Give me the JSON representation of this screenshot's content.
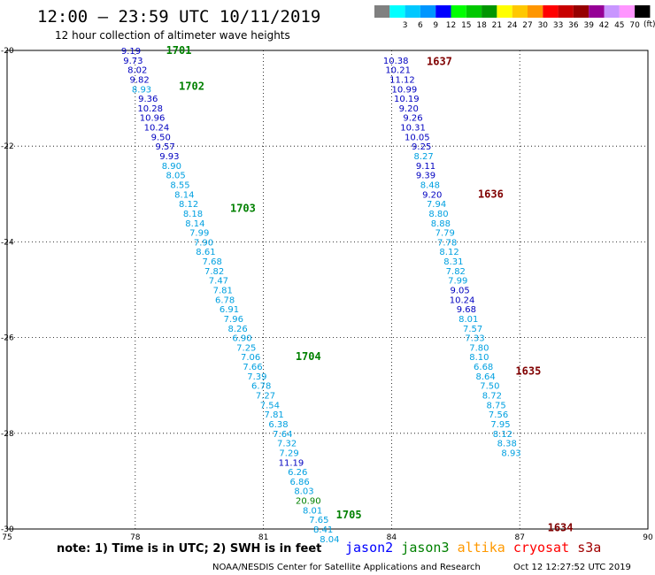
{
  "chart_data": {
    "type": "scatter",
    "title": "12:00 – 23:59 UTC 10/11/2019",
    "subtitle": "12 hour collection of altimeter wave heights",
    "xlim": [
      75,
      90
    ],
    "ylim": [
      -30,
      -20
    ],
    "x_ticks": [
      "75",
      "78",
      "81",
      "84",
      "87",
      "90"
    ],
    "y_ticks": [
      "-20",
      "-22",
      "-24",
      "-26",
      "-28",
      "-30"
    ],
    "grid": true,
    "units": "(ft)",
    "scale": [
      {
        "label": "",
        "color": "#808080"
      },
      {
        "label": "3",
        "color": "#00ffff"
      },
      {
        "label": "6",
        "color": "#00c8ff"
      },
      {
        "label": "9",
        "color": "#0096ff"
      },
      {
        "label": "12",
        "color": "#0000ff"
      },
      {
        "label": "15",
        "color": "#00ff00"
      },
      {
        "label": "18",
        "color": "#00c800"
      },
      {
        "label": "21",
        "color": "#009600"
      },
      {
        "label": "24",
        "color": "#ffff00"
      },
      {
        "label": "27",
        "color": "#ffc800"
      },
      {
        "label": "30",
        "color": "#ff9600"
      },
      {
        "label": "33",
        "color": "#ff0000"
      },
      {
        "label": "36",
        "color": "#c80000"
      },
      {
        "label": "39",
        "color": "#960000"
      },
      {
        "label": "42",
        "color": "#960096"
      },
      {
        "label": "45",
        "color": "#c896ff"
      },
      {
        "label": "70",
        "color": "#ff96ff"
      },
      {
        "label": "",
        "color": "#000000"
      }
    ],
    "pass_labels": [
      {
        "text": "1701",
        "lon": 79.02,
        "lat": -20.0,
        "color": "#008000"
      },
      {
        "text": "1702",
        "lon": 79.32,
        "lat": -20.75,
        "color": "#008000"
      },
      {
        "text": "1703",
        "lon": 80.52,
        "lat": -23.3,
        "color": "#008000"
      },
      {
        "text": "1704",
        "lon": 82.05,
        "lat": -26.4,
        "color": "#008000"
      },
      {
        "text": "1705",
        "lon": 83.0,
        "lat": -29.7,
        "color": "#008000"
      },
      {
        "text": "1637",
        "lon": 85.12,
        "lat": -20.23,
        "color": "#800000"
      },
      {
        "text": "1636",
        "lon": 86.32,
        "lat": -23.0,
        "color": "#800000"
      },
      {
        "text": "1635",
        "lon": 87.2,
        "lat": -26.7,
        "color": "#800000"
      },
      {
        "text": "1634",
        "lon": 87.95,
        "lat": -29.97,
        "color": "#800000"
      }
    ],
    "series": [
      {
        "name": "jason3",
        "points": [
          {
            "lon": 77.9,
            "lat": -20.0,
            "v": "9.19",
            "color": "#0000c0"
          },
          {
            "lon": 77.95,
            "lat": -20.2,
            "v": "9.73",
            "color": "#0000c0"
          },
          {
            "lon": 78.05,
            "lat": -20.4,
            "v": "8.02",
            "color": "#0000c0"
          },
          {
            "lon": 78.1,
            "lat": -20.6,
            "v": "9.82",
            "color": "#0000c0"
          },
          {
            "lon": 78.15,
            "lat": -20.8,
            "v": "8.93",
            "color": "#00a0e0"
          },
          {
            "lon": 78.3,
            "lat": -21.0,
            "v": "9.36",
            "color": "#0000c0"
          },
          {
            "lon": 78.35,
            "lat": -21.2,
            "v": "10.28",
            "color": "#0000c0"
          },
          {
            "lon": 78.4,
            "lat": -21.4,
            "v": "10.96",
            "color": "#0000c0"
          },
          {
            "lon": 78.5,
            "lat": -21.6,
            "v": "10.24",
            "color": "#0000c0"
          },
          {
            "lon": 78.6,
            "lat": -21.8,
            "v": "9.50",
            "color": "#0000c0"
          },
          {
            "lon": 78.7,
            "lat": -22.0,
            "v": "9.57",
            "color": "#0000c0"
          },
          {
            "lon": 78.8,
            "lat": -22.2,
            "v": "9.93",
            "color": "#0000c0"
          },
          {
            "lon": 78.85,
            "lat": -22.4,
            "v": "8.90",
            "color": "#00a0e0"
          },
          {
            "lon": 78.95,
            "lat": -22.6,
            "v": "8.05",
            "color": "#00a0e0"
          },
          {
            "lon": 79.05,
            "lat": -22.8,
            "v": "8.55",
            "color": "#00a0e0"
          },
          {
            "lon": 79.15,
            "lat": -23.0,
            "v": "8.14",
            "color": "#00a0e0"
          },
          {
            "lon": 79.25,
            "lat": -23.2,
            "v": "8.12",
            "color": "#00a0e0"
          },
          {
            "lon": 79.35,
            "lat": -23.4,
            "v": "8.18",
            "color": "#00a0e0"
          },
          {
            "lon": 79.4,
            "lat": -23.6,
            "v": "8.14",
            "color": "#00a0e0"
          },
          {
            "lon": 79.5,
            "lat": -23.8,
            "v": "7.99",
            "color": "#00a0e0"
          },
          {
            "lon": 79.6,
            "lat": -24.0,
            "v": "7.90",
            "color": "#00a0e0"
          },
          {
            "lon": 79.65,
            "lat": -24.2,
            "v": "8.61",
            "color": "#00a0e0"
          },
          {
            "lon": 79.8,
            "lat": -24.4,
            "v": "7.68",
            "color": "#00a0e0"
          },
          {
            "lon": 79.85,
            "lat": -24.6,
            "v": "7.82",
            "color": "#00a0e0"
          },
          {
            "lon": 79.95,
            "lat": -24.8,
            "v": "7.47",
            "color": "#00a0e0"
          },
          {
            "lon": 80.05,
            "lat": -25.0,
            "v": "7.81",
            "color": "#00a0e0"
          },
          {
            "lon": 80.1,
            "lat": -25.2,
            "v": "6.78",
            "color": "#00a0e0"
          },
          {
            "lon": 80.2,
            "lat": -25.4,
            "v": "6.91",
            "color": "#00a0e0"
          },
          {
            "lon": 80.3,
            "lat": -25.6,
            "v": "7.96",
            "color": "#00a0e0"
          },
          {
            "lon": 80.4,
            "lat": -25.8,
            "v": "8.26",
            "color": "#00a0e0"
          },
          {
            "lon": 80.5,
            "lat": -26.0,
            "v": "6.90",
            "color": "#00a0e0"
          },
          {
            "lon": 80.6,
            "lat": -26.2,
            "v": "7.25",
            "color": "#00a0e0"
          },
          {
            "lon": 80.7,
            "lat": -26.4,
            "v": "7.06",
            "color": "#00a0e0"
          },
          {
            "lon": 80.75,
            "lat": -26.6,
            "v": "7.66",
            "color": "#00a0e0"
          },
          {
            "lon": 80.85,
            "lat": -26.8,
            "v": "7.39",
            "color": "#00a0e0"
          },
          {
            "lon": 80.95,
            "lat": -27.0,
            "v": "6.78",
            "color": "#00a0e0"
          },
          {
            "lon": 81.05,
            "lat": -27.2,
            "v": "7.27",
            "color": "#00a0e0"
          },
          {
            "lon": 81.15,
            "lat": -27.4,
            "v": "7.54",
            "color": "#00a0e0"
          },
          {
            "lon": 81.25,
            "lat": -27.6,
            "v": "7.81",
            "color": "#00a0e0"
          },
          {
            "lon": 81.35,
            "lat": -27.8,
            "v": "6.38",
            "color": "#00a0e0"
          },
          {
            "lon": 81.45,
            "lat": -28.0,
            "v": "7.64",
            "color": "#00a0e0"
          },
          {
            "lon": 81.55,
            "lat": -28.2,
            "v": "7.32",
            "color": "#00a0e0"
          },
          {
            "lon": 81.6,
            "lat": -28.4,
            "v": "7.29",
            "color": "#00a0e0"
          },
          {
            "lon": 81.65,
            "lat": -28.6,
            "v": "11.19",
            "color": "#0000c0"
          },
          {
            "lon": 81.8,
            "lat": -28.8,
            "v": "6.26",
            "color": "#00a0e0"
          },
          {
            "lon": 81.85,
            "lat": -29.0,
            "v": "6.86",
            "color": "#00a0e0"
          },
          {
            "lon": 81.95,
            "lat": -29.2,
            "v": "8.03",
            "color": "#00a0e0"
          },
          {
            "lon": 82.05,
            "lat": -29.4,
            "v": "20.90",
            "color": "#008000"
          },
          {
            "lon": 82.15,
            "lat": -29.6,
            "v": "8.01",
            "color": "#00a0e0"
          },
          {
            "lon": 82.3,
            "lat": -29.8,
            "v": "7.65",
            "color": "#00a0e0"
          },
          {
            "lon": 82.4,
            "lat": -30.0,
            "v": "8.41",
            "color": "#00a0e0"
          },
          {
            "lon": 82.55,
            "lat": -30.2,
            "v": "8.04",
            "color": "#00a0e0"
          }
        ]
      },
      {
        "name": "cryosat",
        "points": [
          {
            "lon": 84.1,
            "lat": -20.2,
            "v": "10.38",
            "color": "#0000c0"
          },
          {
            "lon": 84.15,
            "lat": -20.4,
            "v": "10.21",
            "color": "#0000c0"
          },
          {
            "lon": 84.25,
            "lat": -20.6,
            "v": "11.12",
            "color": "#0000c0"
          },
          {
            "lon": 84.3,
            "lat": -20.8,
            "v": "10.99",
            "color": "#0000c0"
          },
          {
            "lon": 84.35,
            "lat": -21.0,
            "v": "10.19",
            "color": "#0000c0"
          },
          {
            "lon": 84.4,
            "lat": -21.2,
            "v": "9.20",
            "color": "#0000c0"
          },
          {
            "lon": 84.5,
            "lat": -21.4,
            "v": "9.26",
            "color": "#0000c0"
          },
          {
            "lon": 84.5,
            "lat": -21.6,
            "v": "10.31",
            "color": "#0000c0"
          },
          {
            "lon": 84.6,
            "lat": -21.8,
            "v": "10.05",
            "color": "#0000c0"
          },
          {
            "lon": 84.7,
            "lat": -22.0,
            "v": "9.25",
            "color": "#0000c0"
          },
          {
            "lon": 84.75,
            "lat": -22.2,
            "v": "8.27",
            "color": "#00a0e0"
          },
          {
            "lon": 84.8,
            "lat": -22.4,
            "v": "9.11",
            "color": "#0000c0"
          },
          {
            "lon": 84.8,
            "lat": -22.6,
            "v": "9.39",
            "color": "#0000c0"
          },
          {
            "lon": 84.9,
            "lat": -22.8,
            "v": "8.48",
            "color": "#00a0e0"
          },
          {
            "lon": 84.95,
            "lat": -23.0,
            "v": "9.20",
            "color": "#0000c0"
          },
          {
            "lon": 85.05,
            "lat": -23.2,
            "v": "7.94",
            "color": "#00a0e0"
          },
          {
            "lon": 85.1,
            "lat": -23.4,
            "v": "8.80",
            "color": "#00a0e0"
          },
          {
            "lon": 85.15,
            "lat": -23.6,
            "v": "8.88",
            "color": "#00a0e0"
          },
          {
            "lon": 85.25,
            "lat": -23.8,
            "v": "7.79",
            "color": "#00a0e0"
          },
          {
            "lon": 85.3,
            "lat": -24.0,
            "v": "7.78",
            "color": "#00a0e0"
          },
          {
            "lon": 85.35,
            "lat": -24.2,
            "v": "8.12",
            "color": "#00a0e0"
          },
          {
            "lon": 85.45,
            "lat": -24.4,
            "v": "8.31",
            "color": "#00a0e0"
          },
          {
            "lon": 85.5,
            "lat": -24.6,
            "v": "7.82",
            "color": "#00a0e0"
          },
          {
            "lon": 85.55,
            "lat": -24.8,
            "v": "7.99",
            "color": "#00a0e0"
          },
          {
            "lon": 85.6,
            "lat": -25.0,
            "v": "9.05",
            "color": "#0000c0"
          },
          {
            "lon": 85.65,
            "lat": -25.2,
            "v": "10.24",
            "color": "#0000c0"
          },
          {
            "lon": 85.75,
            "lat": -25.4,
            "v": "9.68",
            "color": "#0000c0"
          },
          {
            "lon": 85.8,
            "lat": -25.6,
            "v": "8.01",
            "color": "#00a0e0"
          },
          {
            "lon": 85.9,
            "lat": -25.8,
            "v": "7.57",
            "color": "#00a0e0"
          },
          {
            "lon": 85.95,
            "lat": -26.0,
            "v": "7.33",
            "color": "#00a0e0"
          },
          {
            "lon": 86.05,
            "lat": -26.2,
            "v": "7.80",
            "color": "#00a0e0"
          },
          {
            "lon": 86.05,
            "lat": -26.4,
            "v": "8.10",
            "color": "#00a0e0"
          },
          {
            "lon": 86.15,
            "lat": -26.6,
            "v": "6.68",
            "color": "#00a0e0"
          },
          {
            "lon": 86.2,
            "lat": -26.8,
            "v": "8.64",
            "color": "#00a0e0"
          },
          {
            "lon": 86.3,
            "lat": -27.0,
            "v": "7.50",
            "color": "#00a0e0"
          },
          {
            "lon": 86.35,
            "lat": -27.2,
            "v": "8.72",
            "color": "#00a0e0"
          },
          {
            "lon": 86.45,
            "lat": -27.4,
            "v": "8.75",
            "color": "#00a0e0"
          },
          {
            "lon": 86.5,
            "lat": -27.6,
            "v": "7.56",
            "color": "#00a0e0"
          },
          {
            "lon": 86.55,
            "lat": -27.8,
            "v": "7.95",
            "color": "#00a0e0"
          },
          {
            "lon": 86.6,
            "lat": -28.0,
            "v": "8.12",
            "color": "#00a0e0"
          },
          {
            "lon": 86.7,
            "lat": -28.2,
            "v": "8.38",
            "color": "#00a0e0"
          },
          {
            "lon": 86.8,
            "lat": -28.4,
            "v": "8.93",
            "color": "#00a0e0"
          }
        ]
      }
    ]
  },
  "note": "note: 1) Time is in UTC; 2) SWH is in feet",
  "satellites": [
    {
      "name": "jason2",
      "color": "#0000ff"
    },
    {
      "name": "jason3",
      "color": "#008000"
    },
    {
      "name": "altika",
      "color": "#ff9900"
    },
    {
      "name": "cryosat",
      "color": "#ff0000"
    },
    {
      "name": "s3a",
      "color": "#a00000"
    }
  ],
  "footer_left": "NOAA/NESDIS Center for Satellite Applications and Research",
  "footer_right": "Oct 12 12:27:52 UTC 2019"
}
